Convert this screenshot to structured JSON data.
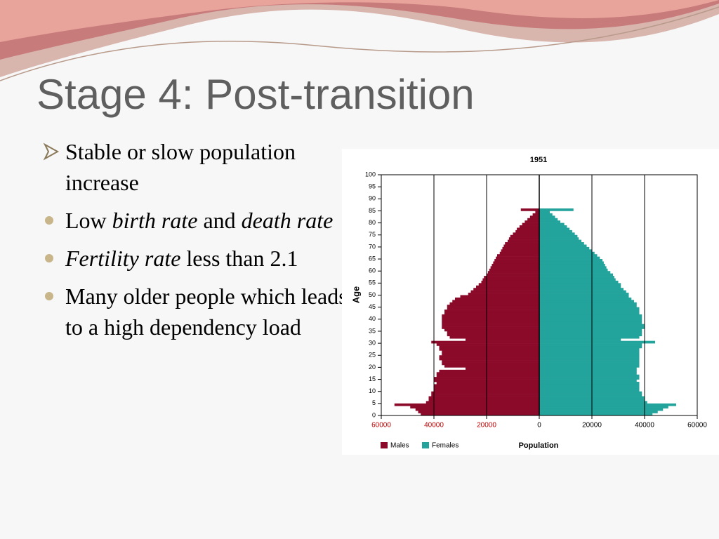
{
  "slide": {
    "title": "Stage 4: Post-transition",
    "bullets": [
      {
        "marker": "arrow",
        "runs": [
          {
            "text": "Stable or slow population increase"
          }
        ]
      },
      {
        "marker": "dot",
        "runs": [
          {
            "text": "Low "
          },
          {
            "text": "birth rate",
            "italic": true
          },
          {
            "text": " and "
          },
          {
            "text": "death rate",
            "italic": true
          }
        ]
      },
      {
        "marker": "dot",
        "runs": [
          {
            "text": "Fertility rate",
            "italic": true
          },
          {
            "text": " less than 2.1"
          }
        ]
      },
      {
        "marker": "dot",
        "runs": [
          {
            "text": "Many older people which leads to a high dependency load"
          }
        ]
      }
    ]
  },
  "chart_data": {
    "type": "pyramid",
    "title": "1951",
    "y_label": "Age",
    "x_label": "Population",
    "ages": [
      0,
      1,
      2,
      3,
      4,
      5,
      6,
      7,
      8,
      9,
      10,
      11,
      12,
      13,
      14,
      15,
      16,
      17,
      18,
      19,
      20,
      21,
      22,
      23,
      24,
      25,
      26,
      27,
      28,
      29,
      30,
      31,
      32,
      33,
      34,
      35,
      36,
      37,
      38,
      39,
      40,
      41,
      42,
      43,
      44,
      45,
      46,
      47,
      48,
      49,
      50,
      51,
      52,
      53,
      54,
      55,
      56,
      57,
      58,
      59,
      60,
      61,
      62,
      63,
      64,
      65,
      66,
      67,
      68,
      69,
      70,
      71,
      72,
      73,
      74,
      75,
      76,
      77,
      78,
      79,
      80,
      81,
      82,
      83,
      84,
      85
    ],
    "series": [
      {
        "name": "Males",
        "color": "#8b0a2a",
        "side": "left",
        "values": [
          45000,
          46000,
          47000,
          49000,
          55000,
          43000,
          42000,
          42000,
          41000,
          41000,
          40000,
          40000,
          40000,
          39000,
          40000,
          40000,
          39000,
          39000,
          38000,
          28000,
          36000,
          37000,
          37000,
          38000,
          38000,
          37000,
          37000,
          38000,
          38000,
          39000,
          41000,
          28000,
          34000,
          35000,
          35000,
          36000,
          37000,
          37000,
          37000,
          37000,
          37000,
          37000,
          36000,
          36000,
          35000,
          35000,
          34000,
          33000,
          32000,
          30000,
          27000,
          26000,
          25000,
          24000,
          23000,
          22000,
          21500,
          21000,
          20000,
          19500,
          19000,
          18500,
          18000,
          17500,
          17000,
          16500,
          16000,
          15000,
          14500,
          14000,
          13500,
          13000,
          12000,
          11500,
          11000,
          10000,
          9000,
          8500,
          7500,
          6500,
          5500,
          4500,
          3500,
          2500,
          1500,
          7000
        ]
      },
      {
        "name": "Females",
        "color": "#22a39b",
        "side": "right",
        "values": [
          43000,
          45000,
          47000,
          49000,
          52000,
          41000,
          40000,
          40000,
          39000,
          39000,
          38000,
          38000,
          38000,
          38000,
          37000,
          38000,
          38000,
          37000,
          37000,
          37000,
          38000,
          38000,
          38000,
          38000,
          38000,
          38000,
          38000,
          38000,
          39000,
          39000,
          44000,
          31000,
          38000,
          39000,
          39000,
          39000,
          40000,
          40000,
          39000,
          39000,
          39000,
          39000,
          38000,
          38000,
          38000,
          37000,
          37000,
          36000,
          35000,
          34000,
          34000,
          33000,
          32000,
          31000,
          31000,
          30000,
          29000,
          28500,
          28000,
          27000,
          26000,
          25500,
          25000,
          24500,
          24000,
          23000,
          22000,
          21000,
          20000,
          19000,
          18000,
          17000,
          16000,
          15000,
          14500,
          13500,
          12500,
          11500,
          10500,
          9500,
          8000,
          7000,
          6000,
          5000,
          4000,
          13000
        ]
      }
    ],
    "xlim": [
      -60000,
      60000
    ],
    "xticks": [
      {
        "value": -60000,
        "label": "60000"
      },
      {
        "value": -40000,
        "label": "40000"
      },
      {
        "value": -20000,
        "label": "20000"
      },
      0,
      20000,
      40000,
      60000
    ],
    "ylim": [
      0,
      100
    ],
    "yticks": [
      0,
      5,
      10,
      15,
      20,
      25,
      30,
      35,
      40,
      45,
      50,
      55,
      60,
      65,
      70,
      75,
      80,
      85,
      90,
      95,
      100
    ],
    "grid": true
  }
}
